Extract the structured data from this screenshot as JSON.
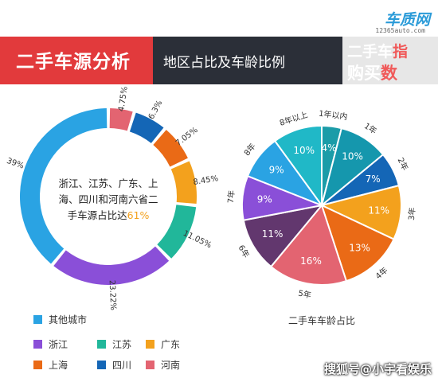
{
  "header": {
    "title": "二手车源分析",
    "subtitle": "地区占比及车龄比例",
    "logo_top": "车质网",
    "logo_url": "12365auto.com",
    "logo_line1": "二手车",
    "logo_line2": "购买",
    "logo_red1": "指",
    "logo_red2": "数"
  },
  "chart_data": [
    {
      "type": "pie",
      "style": "donut",
      "series": [
        {
          "name": "其他城市",
          "value": 39,
          "label": "39%",
          "color": "#2aa3e3"
        },
        {
          "name": "浙江",
          "value": 23.22,
          "label": "23.22%",
          "color": "#8a4fd8"
        },
        {
          "name": "江苏",
          "value": 11.05,
          "label": "11.05%",
          "color": "#21b79a"
        },
        {
          "name": "广东",
          "value": 8.45,
          "label": "8.45%",
          "color": "#f3a11d"
        },
        {
          "name": "上海",
          "value": 7.05,
          "label": "7.05%",
          "color": "#ea6a16"
        },
        {
          "name": "四川",
          "value": 6.3,
          "label": "6.3%",
          "color": "#1466b6"
        },
        {
          "name": "河南",
          "value": 4.75,
          "label": "4.75%",
          "color": "#e36471"
        }
      ],
      "center_text": [
        "浙江、江苏、广东、上",
        "海、四川和河南六省二",
        "手车源占比达"
      ],
      "center_highlight": "61%",
      "center_highlight_color": "#f3a11d",
      "legend": {
        "placement": "bottom-left",
        "rows": [
          [
            "其他城市"
          ],
          [
            "浙江",
            "江苏",
            "广东"
          ],
          [
            "上海",
            "四川",
            "河南"
          ]
        ]
      }
    },
    {
      "type": "pie",
      "title": "二手车车龄占比",
      "series": [
        {
          "name": "1年以内",
          "value": 4,
          "label": "4%",
          "color": "#1b9ca8"
        },
        {
          "name": "1年",
          "value": 10,
          "label": "10%",
          "color": "#1597ad"
        },
        {
          "name": "2年",
          "value": 7,
          "label": "7%",
          "color": "#1466b6"
        },
        {
          "name": "3年",
          "value": 11,
          "label": "11%",
          "color": "#f3a11d"
        },
        {
          "name": "4年",
          "value": 13,
          "label": "13%",
          "color": "#ea6a16"
        },
        {
          "name": "5年",
          "value": 16,
          "label": "16%",
          "color": "#e36471"
        },
        {
          "name": "6年",
          "value": 11,
          "label": "11%",
          "color": "#62376e"
        },
        {
          "name": "7年",
          "value": 9,
          "label": "9%",
          "color": "#8a4fd8"
        },
        {
          "name": "8年",
          "value": 9,
          "label": "9%",
          "color": "#2aa3e3"
        },
        {
          "name": "8年以上",
          "value": 10,
          "label": "10%",
          "color": "#20b8c7"
        }
      ]
    }
  ],
  "watermark": "搜狐号@小宇看娱乐"
}
